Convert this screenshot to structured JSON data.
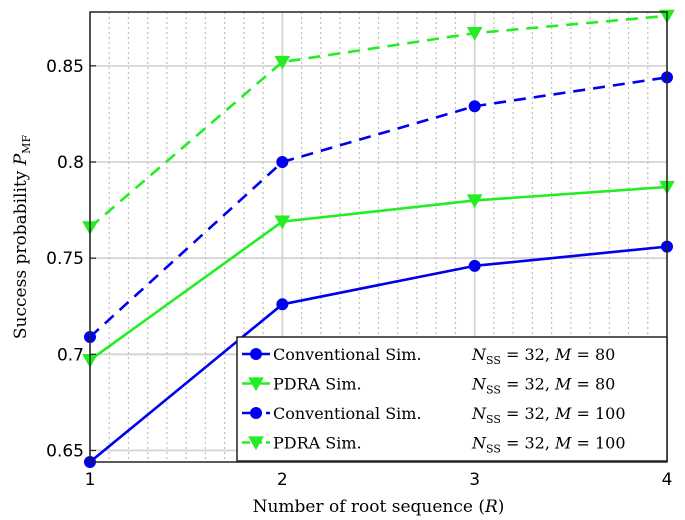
{
  "chart_data": {
    "type": "line",
    "xlabel": "Number of root sequence (R)",
    "ylabel": "Success probability P_MF",
    "x": [
      1,
      2,
      3,
      4
    ],
    "xlim": [
      1,
      4
    ],
    "ylim": [
      0.644,
      0.878
    ],
    "xticks": [
      1,
      2,
      3,
      4
    ],
    "xtick_labels": [
      "1",
      "2",
      "3",
      "4"
    ],
    "yticks": [
      0.65,
      0.7,
      0.75,
      0.8,
      0.85
    ],
    "ytick_labels": [
      "0.65",
      "0.7",
      "0.75",
      "0.8",
      "0.85"
    ],
    "grid": true,
    "minor_grid_x": true,
    "legend_position": "bottom-right",
    "series": [
      {
        "name": "Conventional Sim.",
        "param": "N_SS = 32, M = 80",
        "values": [
          0.644,
          0.726,
          0.746,
          0.756
        ],
        "color": "#0000ee",
        "dash": "solid",
        "marker": "circle"
      },
      {
        "name": "PDRA Sim.",
        "param": "N_SS = 32, M = 80",
        "values": [
          0.697,
          0.769,
          0.78,
          0.787
        ],
        "color": "#22ee22",
        "dash": "solid",
        "marker": "triangle-down"
      },
      {
        "name": "Conventional Sim.",
        "param": "N_SS = 32, M = 100",
        "values": [
          0.709,
          0.8,
          0.829,
          0.844
        ],
        "color": "#0000ee",
        "dash": "dashed",
        "marker": "circle"
      },
      {
        "name": "PDRA Sim.",
        "param": "N_SS = 32, M = 100",
        "values": [
          0.766,
          0.852,
          0.867,
          0.876
        ],
        "color": "#22ee22",
        "dash": "dashed",
        "marker": "triangle-down"
      }
    ]
  }
}
